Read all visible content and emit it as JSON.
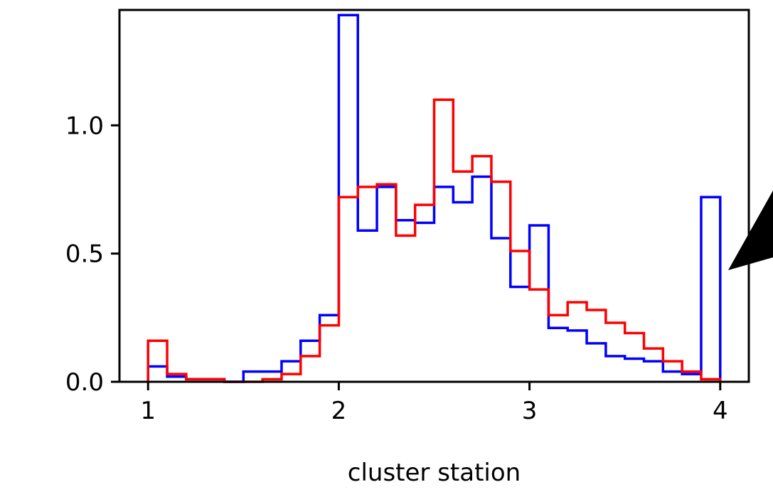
{
  "chart_data": {
    "type": "step-histogram",
    "title": "",
    "xlabel": "cluster station",
    "ylabel": "",
    "xlim": [
      0.85,
      4.15
    ],
    "ylim": [
      0,
      1.45
    ],
    "xticks": [
      1,
      2,
      3,
      4
    ],
    "xtick_labels": [
      "1",
      "2",
      "3",
      "4"
    ],
    "yticks": [
      0.0,
      0.5,
      1.0
    ],
    "ytick_labels": [
      "0.0",
      "0.5",
      "1.0"
    ],
    "grid": false,
    "bin_edges": [
      1.0,
      1.1,
      1.2,
      1.3,
      1.4,
      1.5,
      1.6,
      1.7,
      1.8,
      1.9,
      2.0,
      2.1,
      2.2,
      2.3,
      2.4,
      2.5,
      2.6,
      2.7,
      2.8,
      2.9,
      3.0,
      3.1,
      3.2,
      3.3,
      3.4,
      3.5,
      3.6,
      3.7,
      3.8,
      3.9,
      4.0
    ],
    "series": [
      {
        "color": "#0000ff",
        "values": [
          0.06,
          0.02,
          0.01,
          0.01,
          0.0,
          0.04,
          0.04,
          0.08,
          0.16,
          0.26,
          1.43,
          0.59,
          0.76,
          0.63,
          0.62,
          0.76,
          0.7,
          0.8,
          0.56,
          0.37,
          0.61,
          0.21,
          0.2,
          0.15,
          0.1,
          0.09,
          0.08,
          0.04,
          0.03,
          0.72
        ]
      },
      {
        "color": "#ff0000",
        "values": [
          0.16,
          0.03,
          0.01,
          0.01,
          0.0,
          0.0,
          0.01,
          0.03,
          0.1,
          0.22,
          0.72,
          0.76,
          0.77,
          0.57,
          0.69,
          1.1,
          0.82,
          0.88,
          0.78,
          0.51,
          0.36,
          0.26,
          0.31,
          0.28,
          0.23,
          0.19,
          0.13,
          0.08,
          0.04,
          0.01
        ]
      }
    ]
  },
  "annotation": {
    "type": "arrow",
    "color": "#000000"
  }
}
